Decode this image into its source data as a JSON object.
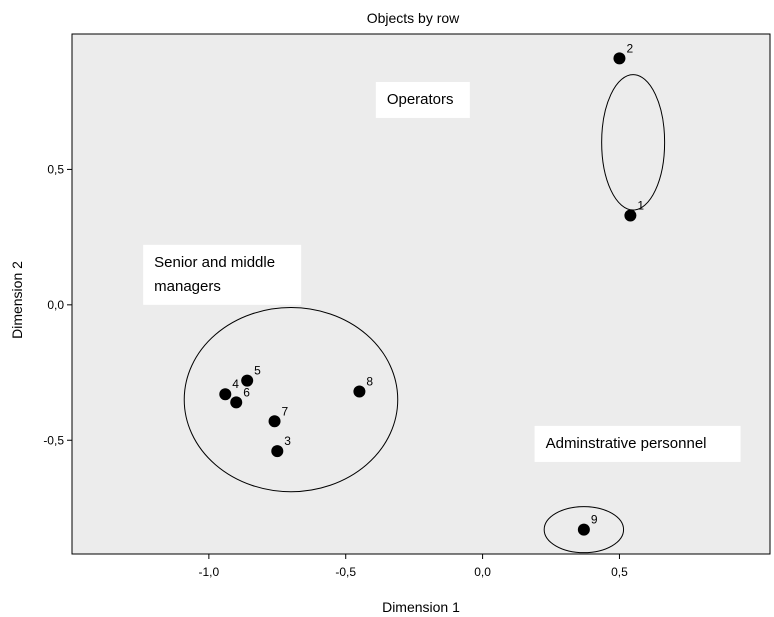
{
  "chart_data": {
    "type": "scatter",
    "title": "Objects by row",
    "xlabel": "Dimension 1",
    "ylabel": "Dimension 2",
    "xlim": [
      -1.5,
      1.05
    ],
    "ylim": [
      -0.92,
      1.0
    ],
    "xticks": [
      -1.0,
      -0.5,
      0.0,
      0.5
    ],
    "xtick_labels": [
      "-1,0",
      "-0,5",
      "0,0",
      "0,5"
    ],
    "yticks": [
      -0.5,
      0.0,
      0.5
    ],
    "ytick_labels": [
      "-0,5",
      "0,0",
      "0,5"
    ],
    "grid": false,
    "points": [
      {
        "label": "1",
        "x": 0.54,
        "y": 0.33
      },
      {
        "label": "2",
        "x": 0.5,
        "y": 0.91
      },
      {
        "label": "3",
        "x": -0.75,
        "y": -0.54
      },
      {
        "label": "4",
        "x": -0.94,
        "y": -0.33
      },
      {
        "label": "5",
        "x": -0.86,
        "y": -0.28
      },
      {
        "label": "6",
        "x": -0.9,
        "y": -0.36
      },
      {
        "label": "7",
        "x": -0.76,
        "y": -0.43
      },
      {
        "label": "8",
        "x": -0.45,
        "y": -0.32
      },
      {
        "label": "9",
        "x": 0.37,
        "y": -0.83
      }
    ],
    "groups": [
      {
        "label": "Senior and middle managers",
        "cx": 0.55,
        "cy": 0.6,
        "rx": 0.23,
        "ry": 0.5,
        "text": [
          "Senior and middle",
          "managers"
        ]
      },
      {
        "label": "Operators",
        "cx": -0.7,
        "cy": -0.35,
        "rx": 0.78,
        "ry": 0.68,
        "text": [
          "Operators"
        ]
      },
      {
        "label": "Adminstrative personnel",
        "cx": 0.37,
        "cy": -0.83,
        "rx": 0.29,
        "ry": 0.17,
        "text": [
          "Adminstrative personnel"
        ]
      }
    ],
    "annotation_anchor": [
      {
        "x": -1.24,
        "y": 0.0
      },
      {
        "x": -0.39,
        "y": 0.69
      },
      {
        "x": 0.19,
        "y": -0.58
      }
    ]
  }
}
